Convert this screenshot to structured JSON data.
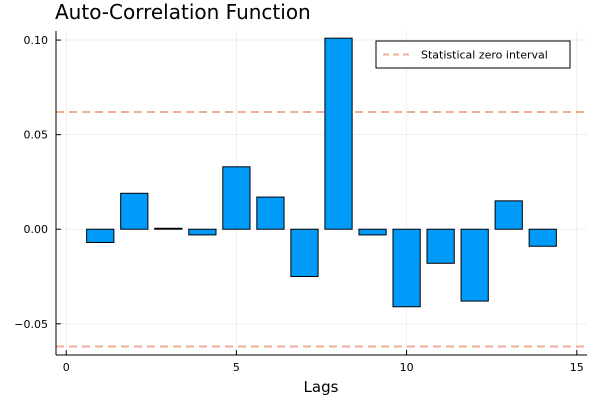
{
  "chart_data": {
    "type": "bar",
    "title": "Auto-Correlation Function",
    "xlabel": "Lags",
    "ylabel": "",
    "xlim": [
      -0.3,
      15.3
    ],
    "ylim": [
      -0.0665,
      0.1048
    ],
    "x_ticks": [
      0,
      5,
      10,
      15
    ],
    "x_tick_labels": [
      "0",
      "5",
      "10",
      "15"
    ],
    "y_ticks": [
      -0.05,
      0.0,
      0.05,
      0.1
    ],
    "y_tick_labels": [
      "−0.05",
      "0.00",
      "0.05",
      "0.10"
    ],
    "grid": true,
    "legend_position": "top-right",
    "lags": [
      1,
      2,
      3,
      4,
      5,
      6,
      7,
      8,
      9,
      10,
      11,
      12,
      13,
      14
    ],
    "values": [
      -0.007,
      0.019,
      0.0005,
      -0.003,
      0.033,
      0.017,
      -0.025,
      0.101,
      -0.003,
      -0.041,
      -0.018,
      -0.038,
      0.015,
      -0.009
    ],
    "bar_color": "#009af9",
    "bar_width": 0.8,
    "zero_interval": {
      "name": "Statistical zero interval",
      "upper": 0.062,
      "lower": -0.062,
      "color": "#e26f46"
    }
  }
}
